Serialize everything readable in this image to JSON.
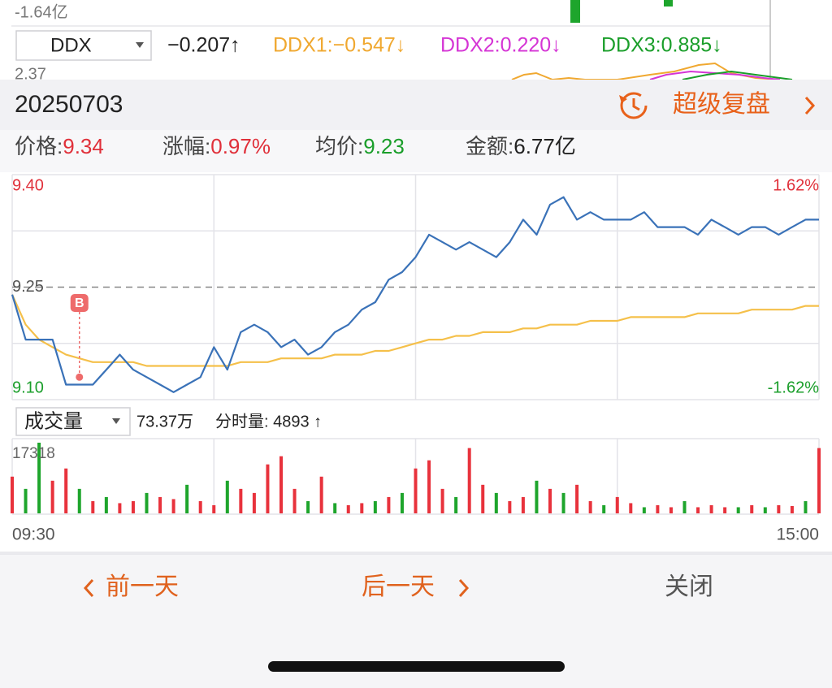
{
  "top_strip": {
    "axis_label": "-1.64亿",
    "selector": "DDX",
    "ddx": "−0.207↑",
    "ddx1": "DDX1:−0.547↓",
    "ddx2": "DDX2:0.220↓",
    "ddx3": "DDX3:0.885↓",
    "axis_label2": "2.37"
  },
  "header": {
    "date": "20250703",
    "link": "超级复盘"
  },
  "stats": [
    {
      "label": "价格:",
      "value": "9.34",
      "color": "#e0303a"
    },
    {
      "label": "涨幅:",
      "value": "0.97%",
      "color": "#e0303a"
    },
    {
      "label": "均价:",
      "value": "9.23",
      "color": "#1a9e2a"
    },
    {
      "label": "金额:",
      "value": "6.77亿",
      "color": "#222222"
    }
  ],
  "chart_data": [
    {
      "type": "line",
      "x": [
        0,
        4,
        8,
        12,
        16,
        20,
        24,
        28,
        32,
        36,
        40,
        44,
        48,
        52,
        56,
        60,
        64,
        68,
        72,
        76,
        80,
        84,
        88,
        92,
        96,
        100,
        104,
        108,
        112,
        116,
        120,
        124,
        128,
        132,
        136,
        140,
        144,
        148,
        152,
        156,
        160,
        164,
        168,
        172,
        176,
        180,
        184,
        188,
        192,
        196,
        200,
        204,
        208,
        212,
        216,
        220,
        224,
        228,
        232,
        236,
        240
      ],
      "xlim": [
        0,
        240
      ],
      "ylim": [
        9.1,
        9.4
      ],
      "yticks": [
        {
          "value": 9.4,
          "label": "9.40"
        },
        9.25,
        {
          "value": 9.1,
          "label": "9.10"
        }
      ],
      "y2lim": [
        -1.62,
        1.62
      ],
      "y2ticks": [
        {
          "value": 1.62,
          "label": "1.62%"
        },
        {
          "value": -1.62,
          "label": "-1.62%"
        }
      ],
      "ref_line": 9.25,
      "grid": true,
      "up_color": "#e0303a",
      "down_color": "#1a9e2a",
      "series": [
        {
          "color": "#3a72b8",
          "values": [
            9.24,
            9.18,
            9.18,
            9.18,
            9.12,
            9.12,
            9.12,
            9.14,
            9.16,
            9.14,
            9.13,
            9.12,
            9.11,
            9.12,
            9.13,
            9.17,
            9.14,
            9.19,
            9.2,
            9.19,
            9.17,
            9.18,
            9.16,
            9.17,
            9.19,
            9.2,
            9.22,
            9.23,
            9.26,
            9.27,
            9.29,
            9.32,
            9.31,
            9.3,
            9.31,
            9.3,
            9.29,
            9.31,
            9.34,
            9.32,
            9.36,
            9.37,
            9.34,
            9.35,
            9.34,
            9.34,
            9.34,
            9.35,
            9.33,
            9.33,
            9.33,
            9.32,
            9.34,
            9.33,
            9.32,
            9.33,
            9.33,
            9.32,
            9.33,
            9.34,
            9.34
          ]
        },
        {
          "color": "#f5c04a",
          "values": [
            9.24,
            9.2,
            9.18,
            9.17,
            9.16,
            9.155,
            9.15,
            9.15,
            9.15,
            9.15,
            9.145,
            9.145,
            9.145,
            9.145,
            9.145,
            9.145,
            9.145,
            9.15,
            9.15,
            9.15,
            9.155,
            9.155,
            9.155,
            9.155,
            9.16,
            9.16,
            9.16,
            9.165,
            9.165,
            9.17,
            9.175,
            9.18,
            9.18,
            9.185,
            9.185,
            9.19,
            9.19,
            9.19,
            9.195,
            9.195,
            9.2,
            9.2,
            9.2,
            9.205,
            9.205,
            9.205,
            9.21,
            9.21,
            9.21,
            9.21,
            9.21,
            9.215,
            9.215,
            9.215,
            9.215,
            9.22,
            9.22,
            9.22,
            9.22,
            9.225,
            9.225
          ]
        }
      ],
      "annotations": [
        {
          "label": "B",
          "x": 20,
          "y": 9.13
        }
      ]
    },
    {
      "type": "bar",
      "x": [
        0,
        4,
        8,
        12,
        16,
        20,
        24,
        28,
        32,
        36,
        40,
        44,
        48,
        52,
        56,
        60,
        64,
        68,
        72,
        76,
        80,
        84,
        88,
        92,
        96,
        100,
        104,
        108,
        112,
        116,
        120,
        124,
        128,
        132,
        136,
        140,
        144,
        148,
        152,
        156,
        160,
        164,
        168,
        172,
        176,
        180,
        184,
        188,
        192,
        196,
        200,
        204,
        208,
        212,
        216,
        220,
        224,
        228,
        232,
        236,
        240
      ],
      "xlim": [
        0,
        240
      ],
      "xticks": [
        {
          "value": 0,
          "label": "09:30"
        },
        {
          "value": 240,
          "label": "15:00"
        }
      ],
      "ylim": [
        0,
        17318
      ],
      "yticks": [
        17318
      ],
      "values": [
        9000,
        6000,
        17318,
        8000,
        11000,
        6000,
        3000,
        4000,
        2500,
        3000,
        5000,
        4000,
        3500,
        7000,
        3000,
        2000,
        8000,
        6000,
        5000,
        12000,
        14000,
        6000,
        3000,
        9000,
        2500,
        2000,
        2500,
        3000,
        4000,
        5000,
        11000,
        13000,
        6000,
        4000,
        16000,
        7000,
        5000,
        3000,
        4000,
        8000,
        6000,
        5000,
        7000,
        3000,
        2000,
        4000,
        2500,
        1500,
        2000,
        1500,
        3000,
        1500,
        2000,
        1500,
        1500,
        2000,
        1500,
        2000,
        1800,
        3000,
        16000
      ],
      "colors": [
        "#e8323c",
        "#1ea52c",
        "#1ea52c",
        "#e8323c",
        "#e8323c",
        "#1ea52c",
        "#e8323c",
        "#1ea52c",
        "#e8323c",
        "#e8323c",
        "#1ea52c",
        "#e8323c",
        "#e8323c",
        "#1ea52c",
        "#e8323c",
        "#e8323c",
        "#1ea52c",
        "#e8323c",
        "#e8323c",
        "#e8323c",
        "#e8323c",
        "#e8323c",
        "#1ea52c",
        "#e8323c",
        "#1ea52c",
        "#e8323c",
        "#e8323c",
        "#1ea52c",
        "#e8323c",
        "#1ea52c",
        "#e8323c",
        "#e8323c",
        "#e8323c",
        "#1ea52c",
        "#e8323c",
        "#e8323c",
        "#1ea52c",
        "#e8323c",
        "#e8323c",
        "#1ea52c",
        "#e8323c",
        "#1ea52c",
        "#e8323c",
        "#e8323c",
        "#1ea52c",
        "#e8323c",
        "#e8323c",
        "#1ea52c",
        "#e8323c",
        "#e8323c",
        "#1ea52c",
        "#e8323c",
        "#e8323c",
        "#e8323c",
        "#1ea52c",
        "#e8323c",
        "#1ea52c",
        "#e8323c",
        "#e8323c",
        "#1ea52c",
        "#e8323c"
      ]
    }
  ],
  "volume_header": {
    "selector": "成交量",
    "total": "73.37万",
    "minute_volume": "分时量: 4893 ↑"
  },
  "footer": {
    "prev": "前一天",
    "next": "后一天",
    "close": "关闭"
  }
}
